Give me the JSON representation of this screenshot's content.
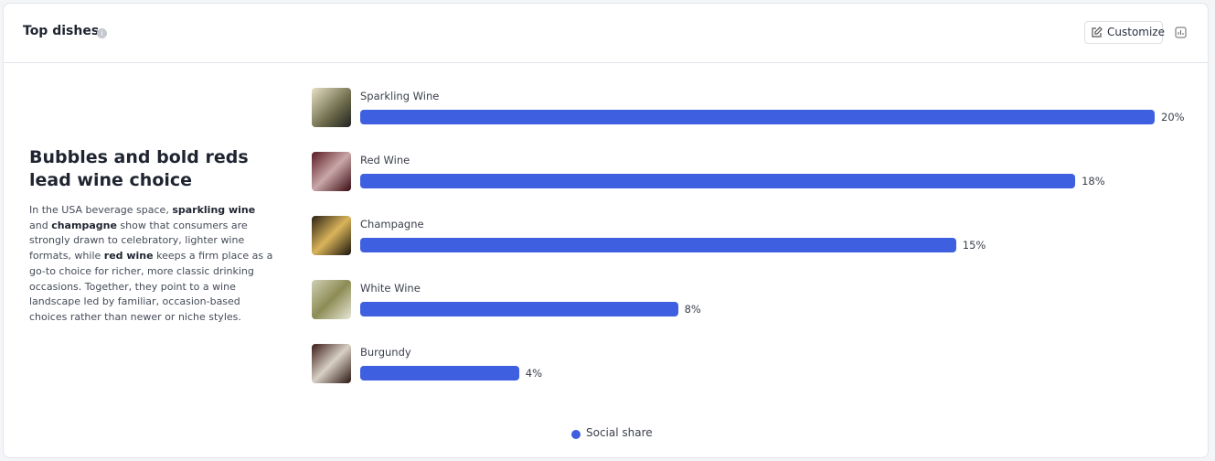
{
  "header": {
    "title": "Top dishes",
    "button": "Customize"
  },
  "insight": {
    "heading": "Bubbles and bold reds lead wine choice",
    "paragraph": [
      {
        "text": "In the USA beverage space, ",
        "bold": false
      },
      {
        "text": "sparkling wine",
        "bold": true
      },
      {
        "text": " and ",
        "bold": false
      },
      {
        "text": "champagne",
        "bold": true
      },
      {
        "text": " show that consumers are strongly drawn to celebratory, lighter wine formats, while ",
        "bold": false
      },
      {
        "text": "red wine",
        "bold": true
      },
      {
        "text": " keeps a firm place as a go-to choice for richer, more classic drinking occasions. Together, they point to a wine landscape led by familiar, occasion-based choices rather than newer or niche styles.",
        "bold": false
      }
    ]
  },
  "chart_data": {
    "type": "bar",
    "orientation": "horizontal",
    "categories": [
      "Sparkling Wine",
      "Red Wine",
      "Champagne",
      "White Wine",
      "Burgundy"
    ],
    "series": [
      {
        "name": "Social share",
        "color": "#3d5fe0",
        "values": [
          20,
          18,
          15,
          8,
          4
        ],
        "value_labels": [
          "20%",
          "18%",
          "15%",
          "8%",
          "4%"
        ]
      }
    ],
    "xlim": [
      0,
      20
    ]
  }
}
